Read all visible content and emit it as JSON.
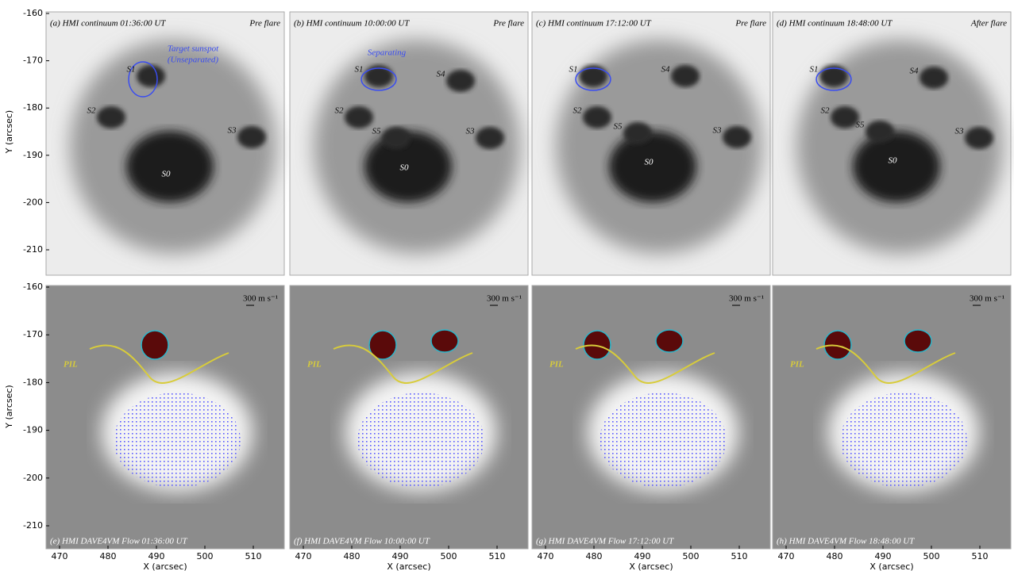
{
  "y_axis": {
    "label": "Y (arcsec)",
    "ticks": [
      "-160",
      "-170",
      "-180",
      "-190",
      "-200",
      "-210"
    ]
  },
  "x_axis": {
    "label": "X (arcsec)",
    "ticks": [
      "470",
      "480",
      "490",
      "500",
      "510"
    ]
  },
  "top_panels": [
    {
      "title": "(a) HMI continuum 01:36:00 UT",
      "phase": "Pre flare",
      "labels": [
        "S1",
        "S2",
        "S3",
        "S0"
      ],
      "annotation": [
        "Target sunspot",
        "(Unseparated)"
      ]
    },
    {
      "title": "(b) HMI continuum 10:00:00 UT",
      "phase": "Pre flare",
      "labels": [
        "S1",
        "S4",
        "S2",
        "S5",
        "S3",
        "S0"
      ],
      "annotation": [
        "Separating"
      ]
    },
    {
      "title": "(c) HMI continuum 17:12:00 UT",
      "phase": "Pre flare",
      "labels": [
        "S1",
        "S4",
        "S2",
        "S5",
        "S3",
        "S0"
      ]
    },
    {
      "title": "(d) HMI continuum 18:48:00 UT",
      "phase": "After flare",
      "labels": [
        "S1",
        "S4",
        "S2",
        "S5",
        "S3",
        "S0"
      ]
    }
  ],
  "bottom_panels": [
    {
      "title": "(e) HMI DAVE4VM Flow 01:36:00 UT",
      "scale": "300 m s⁻¹",
      "pil": "PIL"
    },
    {
      "title": "(f) HMI DAVE4VM Flow 10:00:00 UT",
      "scale": "300 m s⁻¹",
      "pil": "PIL"
    },
    {
      "title": "(g) HMI DAVE4VM Flow 17:12:00 UT",
      "scale": "300 m s⁻¹",
      "pil": "PIL"
    },
    {
      "title": "(h) HMI DAVE4VM Flow 18:48:00 UT",
      "scale": "300 m s⁻¹",
      "pil": "PIL"
    }
  ]
}
